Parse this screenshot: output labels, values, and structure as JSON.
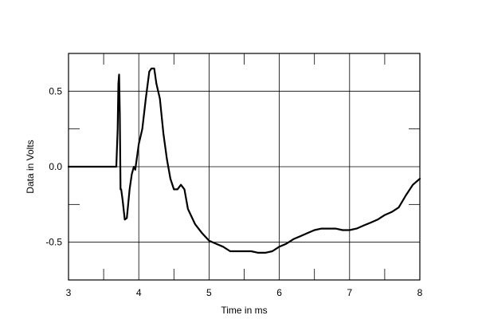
{
  "chart_data": {
    "type": "line",
    "title": "",
    "xlabel": "Time in ms",
    "ylabel": "Data in Volts",
    "xlim": [
      3,
      8
    ],
    "ylim": [
      -0.75,
      0.75
    ],
    "x_ticks": [
      3,
      4,
      5,
      6,
      7,
      8
    ],
    "x_tick_labels": [
      "3",
      "4",
      "5",
      "6",
      "7",
      "8"
    ],
    "y_ticks": [
      0.5,
      0.0,
      -0.5
    ],
    "y_tick_labels": [
      "0.5",
      "0.0",
      "-0.5"
    ],
    "grid": true,
    "legend": "none",
    "line_color": "#000000",
    "series": [
      {
        "x": [
          3.0,
          3.5,
          3.68,
          3.7,
          3.71,
          3.72,
          3.73,
          3.74,
          3.75,
          3.77,
          3.8,
          3.83,
          3.87,
          3.9,
          3.93,
          3.95,
          3.97,
          4.0,
          4.05,
          4.1,
          4.15,
          4.18,
          4.22,
          4.25,
          4.3,
          4.35,
          4.4,
          4.45,
          4.5,
          4.55,
          4.6,
          4.65,
          4.7,
          4.8,
          4.9,
          5.0,
          5.1,
          5.2,
          5.3,
          5.4,
          5.5,
          5.6,
          5.7,
          5.8,
          5.9,
          6.0,
          6.1,
          6.2,
          6.3,
          6.4,
          6.5,
          6.6,
          6.7,
          6.8,
          6.9,
          7.0,
          7.1,
          7.2,
          7.3,
          7.4,
          7.5,
          7.6,
          7.7,
          7.8,
          7.9,
          8.0
        ],
        "y": [
          0.0,
          0.0,
          0.0,
          0.25,
          0.55,
          0.61,
          0.35,
          -0.15,
          -0.15,
          -0.22,
          -0.35,
          -0.34,
          -0.15,
          -0.05,
          0.0,
          -0.02,
          0.05,
          0.15,
          0.25,
          0.45,
          0.63,
          0.65,
          0.65,
          0.55,
          0.45,
          0.22,
          0.05,
          -0.08,
          -0.15,
          -0.15,
          -0.12,
          -0.15,
          -0.28,
          -0.38,
          -0.44,
          -0.49,
          -0.51,
          -0.53,
          -0.56,
          -0.56,
          -0.56,
          -0.56,
          -0.57,
          -0.57,
          -0.56,
          -0.53,
          -0.51,
          -0.48,
          -0.46,
          -0.44,
          -0.42,
          -0.41,
          -0.41,
          -0.41,
          -0.42,
          -0.42,
          -0.41,
          -0.39,
          -0.37,
          -0.35,
          -0.32,
          -0.3,
          -0.27,
          -0.19,
          -0.12,
          -0.08
        ]
      }
    ]
  }
}
